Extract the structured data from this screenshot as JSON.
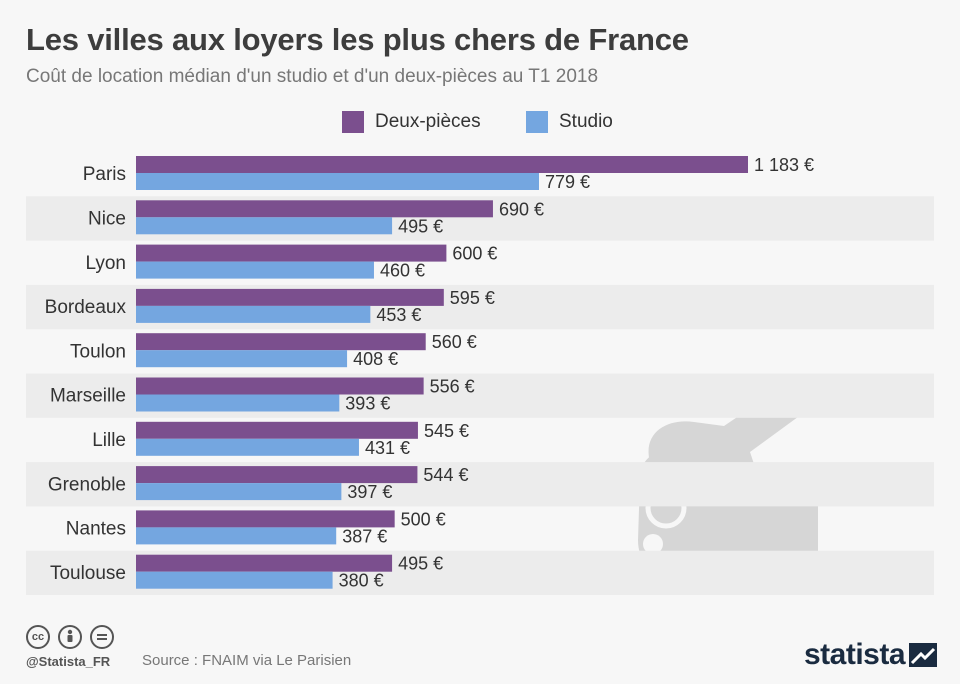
{
  "colors": {
    "deux_pieces": "#7b4f8e",
    "studio": "#74a6e0",
    "row_alt": "#ececec",
    "background": "#f7f7f7"
  },
  "chart_data": {
    "type": "bar",
    "orientation": "horizontal",
    "title": "Les villes aux loyers les plus chers de France",
    "subtitle": "Coût de location médian d'un studio et d'un deux-pièces au T1 2018",
    "categories": [
      "Paris",
      "Nice",
      "Lyon",
      "Bordeaux",
      "Toulon",
      "Marseille",
      "Lille",
      "Grenoble",
      "Nantes",
      "Toulouse"
    ],
    "series": [
      {
        "name": "Deux-pièces",
        "values": [
          1183,
          690,
          600,
          595,
          560,
          556,
          545,
          544,
          500,
          495
        ],
        "labels": [
          "1 183 €",
          "690 €",
          "600 €",
          "595 €",
          "560 €",
          "556 €",
          "545 €",
          "544 €",
          "500 €",
          "495 €"
        ]
      },
      {
        "name": "Studio",
        "values": [
          779,
          495,
          460,
          453,
          408,
          393,
          431,
          397,
          387,
          380
        ],
        "labels": [
          "779 €",
          "495 €",
          "460 €",
          "453 €",
          "408 €",
          "393 €",
          "431 €",
          "397 €",
          "387 €",
          "380 €"
        ]
      }
    ],
    "xlim": [
      0,
      1183
    ],
    "legend_position": "top-center",
    "grid": false
  },
  "legend": {
    "deux_pieces": "Deux-pièces",
    "studio": "Studio"
  },
  "footer": {
    "handle": "@Statista_FR",
    "source": "Source : FNAIM via Le Parisien",
    "brand": "statista",
    "cc_icons": [
      "cc",
      "by",
      "nd"
    ]
  }
}
